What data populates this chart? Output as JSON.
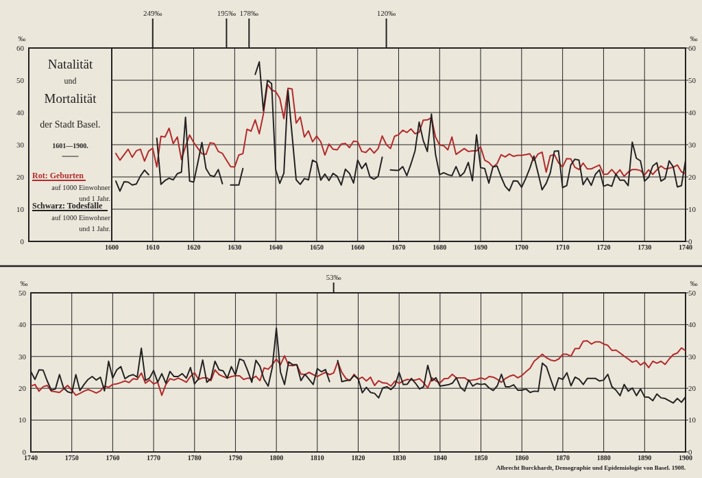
{
  "chart_data": [
    {
      "type": "line",
      "title": "Natalität\nund\nMortalität\nder Stadt Basel.",
      "subtitle": "1601—1900.",
      "ylabel": "‰",
      "y2label": "‰",
      "x": [
        1601,
        1602,
        1603,
        1604,
        1605,
        1606,
        1607,
        1608,
        1609,
        1610,
        1611,
        1612,
        1613,
        1614,
        1615,
        1616,
        1617,
        1618,
        1619,
        1620,
        1621,
        1622,
        1623,
        1624,
        1625,
        1626,
        1627,
        1628,
        1629,
        1630,
        1631,
        1632,
        1633,
        1634,
        1635,
        1636,
        1637,
        1638,
        1639,
        1640,
        1641,
        1642,
        1643,
        1644,
        1645,
        1646,
        1647,
        1648,
        1649,
        1650,
        1651,
        1652,
        1653,
        1654,
        1655,
        1656,
        1657,
        1658,
        1659,
        1660,
        1661,
        1662,
        1663,
        1664,
        1665,
        1666,
        1667,
        1668,
        1669,
        1670,
        1671,
        1672,
        1673,
        1674,
        1675,
        1676,
        1677,
        1678,
        1679,
        1680,
        1681,
        1682,
        1683,
        1684,
        1685,
        1686,
        1687,
        1688,
        1689,
        1690,
        1691,
        1692,
        1693,
        1694,
        1695,
        1696,
        1697,
        1698,
        1699,
        1700,
        1701,
        1702,
        1703,
        1704,
        1705,
        1706,
        1707,
        1708,
        1709,
        1710,
        1711,
        1712,
        1713,
        1714,
        1715,
        1716,
        1717,
        1718,
        1719,
        1720,
        1721,
        1722,
        1723,
        1724,
        1725,
        1726,
        1727,
        1728,
        1729,
        1730,
        1731,
        1732,
        1733,
        1734,
        1735,
        1736,
        1737,
        1738,
        1739,
        1740
      ],
      "series": [
        {
          "name": "Rot: Geburten",
          "color": "#b22a2a",
          "values": [
            27.3,
            25.2,
            26.9,
            28.6,
            26.1,
            28.1,
            28.6,
            24.9,
            28,
            28.9,
            23.1,
            32.6,
            32.4,
            35.1,
            30.3,
            32.4,
            25.4,
            29.5,
            33,
            30.7,
            28.9,
            27.2,
            27,
            30.6,
            30.4,
            27.9,
            27.3,
            25.2,
            23.2,
            23.1,
            26.8,
            27.2,
            34.8,
            34.2,
            37.7,
            33.4,
            39.5,
            48.7,
            47,
            46.5,
            44.4,
            38.1,
            47.5,
            47.3,
            36.7,
            38.6,
            32.4,
            34.3,
            30.9,
            32.7,
            30.9,
            26.8,
            30.2,
            28.6,
            28.4,
            30.2,
            30.4,
            29.1,
            31.1,
            30.9,
            27.9,
            27.6,
            28.9,
            27.4,
            28.8,
            32.7,
            30,
            28.8,
            32.6,
            33.1,
            34.5,
            33.8,
            34.9,
            33.4,
            33.8,
            37.6,
            37.7,
            38.4,
            32.4,
            29.9,
            29.7,
            28.4,
            32.4,
            27,
            27.9,
            28.8,
            27.9,
            28.1,
            28.1,
            29.3,
            25.2,
            24.5,
            23.1,
            24.1,
            26.9,
            26.2,
            27.1,
            26.4,
            26.7,
            26.7,
            26.9,
            27.2,
            25.1,
            27.1,
            27.7,
            21.5,
            26.6,
            26.9,
            24.4,
            23.1,
            25.7,
            25.6,
            23,
            22.3,
            24.3,
            22.5,
            22.5,
            23.1,
            23.7,
            20.8,
            20.9,
            22.3,
            20.8,
            22.2,
            20.2,
            21.5,
            22.3,
            22.3,
            22,
            20.6,
            22.2,
            20.8,
            22.2,
            23.4,
            22.5,
            22.7,
            23,
            23.7,
            21.6,
            21
          ]
        },
        {
          "name": "Schwarz: Todesfälle",
          "color": "#222222",
          "values": [
            18.7,
            15.6,
            18.5,
            18.4,
            17.5,
            17.8,
            20.3,
            22.1,
            20.7,
            null,
            32,
            17.7,
            18.9,
            19.6,
            19.1,
            21,
            21.5,
            38.5,
            18.7,
            18.4,
            24.4,
            30.7,
            22.6,
            20.5,
            20.1,
            22.3,
            17.9,
            null,
            17.5,
            17.5,
            17.5,
            22.6,
            null,
            null,
            51.8,
            55.7,
            40.6,
            50,
            49,
            22.3,
            18,
            21.2,
            46.9,
            33,
            19.1,
            17.7,
            19.5,
            19.1,
            25.2,
            24.5,
            19,
            20.9,
            18.9,
            21.1,
            20.2,
            17.5,
            22.4,
            21.1,
            18.1,
            25.2,
            22.6,
            24.3,
            20,
            19.3,
            20.2,
            26.1,
            null,
            22.2,
            22.1,
            22,
            23.2,
            20.4,
            24,
            28.1,
            37,
            31.3,
            27.9,
            39.5,
            27,
            20.7,
            21.3,
            20.7,
            20.4,
            23.2,
            20.2,
            21.4,
            24.5,
            18.8,
            33.1,
            22.9,
            22.6,
            18.1,
            23.1,
            23.4,
            20,
            17.1,
            15.7,
            18.8,
            18.7,
            16.8,
            19.5,
            22.7,
            26.5,
            21.3,
            16,
            18,
            21.3,
            28,
            28.1,
            16.7,
            17.3,
            23.7,
            25.5,
            25.2,
            17.6,
            19.7,
            17.4,
            20.8,
            22.2,
            17.1,
            17.6,
            17.1,
            20.9,
            19,
            19,
            17.3,
            30.8,
            25.8,
            25,
            18.7,
            19.9,
            23.4,
            24.4,
            18.7,
            19.5,
            25,
            23.1,
            16.9,
            17.3,
            25.2
          ]
        }
      ],
      "xlim": [
        1600,
        1740
      ],
      "xticks": [
        1600,
        1610,
        1620,
        1630,
        1640,
        1650,
        1660,
        1670,
        1680,
        1690,
        1700,
        1710,
        1720,
        1730,
        1740
      ],
      "ylim": [
        0,
        60
      ],
      "yticks": [
        0,
        10,
        20,
        30,
        40,
        50,
        60
      ],
      "y2lim": [
        0,
        60
      ],
      "y2ticks": [
        0,
        10,
        20,
        30,
        40,
        50,
        60
      ],
      "grid": true,
      "legend": "left",
      "annotations": [
        {
          "text": "249‰",
          "x": 1610
        },
        {
          "text": "195‰",
          "x": 1628
        },
        {
          "text": "178‰",
          "x": 1633.5
        },
        {
          "text": "120‰",
          "x": 1667
        },
        "auf 1000 Einwohner und 1 Jahr.",
        "auf 1000 Einwohner und 1 Jahr."
      ]
    },
    {
      "type": "line",
      "ylabel": "‰",
      "y2label": "‰",
      "x": [
        1740,
        1741,
        1742,
        1743,
        1744,
        1745,
        1746,
        1747,
        1748,
        1749,
        1750,
        1751,
        1752,
        1753,
        1754,
        1755,
        1756,
        1757,
        1758,
        1759,
        1760,
        1761,
        1762,
        1763,
        1764,
        1765,
        1766,
        1767,
        1768,
        1769,
        1770,
        1771,
        1772,
        1773,
        1774,
        1775,
        1776,
        1777,
        1778,
        1779,
        1780,
        1781,
        1782,
        1783,
        1784,
        1785,
        1786,
        1787,
        1788,
        1789,
        1790,
        1791,
        1792,
        1793,
        1794,
        1795,
        1796,
        1797,
        1798,
        1799,
        1800,
        1801,
        1802,
        1803,
        1804,
        1805,
        1806,
        1807,
        1808,
        1809,
        1810,
        1811,
        1812,
        1813,
        1814,
        1815,
        1816,
        1817,
        1818,
        1819,
        1820,
        1821,
        1822,
        1823,
        1824,
        1825,
        1826,
        1827,
        1828,
        1829,
        1830,
        1831,
        1832,
        1833,
        1834,
        1835,
        1836,
        1837,
        1838,
        1839,
        1840,
        1841,
        1842,
        1843,
        1844,
        1845,
        1846,
        1847,
        1848,
        1849,
        1850,
        1851,
        1852,
        1853,
        1854,
        1855,
        1856,
        1857,
        1858,
        1859,
        1860,
        1861,
        1862,
        1863,
        1864,
        1865,
        1866,
        1867,
        1868,
        1869,
        1870,
        1871,
        1872,
        1873,
        1874,
        1875,
        1876,
        1877,
        1878,
        1879,
        1880,
        1881,
        1882,
        1883,
        1884,
        1885,
        1886,
        1887,
        1888,
        1889,
        1890,
        1891,
        1892,
        1893,
        1894,
        1895,
        1896,
        1897,
        1898,
        1899,
        1900
      ],
      "series": [
        {
          "color": "#b22a2a",
          "values": [
            20.7,
            21.2,
            19.1,
            20.5,
            20.9,
            19.1,
            18.9,
            18.7,
            19.8,
            20.9,
            19.4,
            17.8,
            18.4,
            19.1,
            19.6,
            19.1,
            18.5,
            19.2,
            20.7,
            20.3,
            21.2,
            21.4,
            21.8,
            22.3,
            21.8,
            23,
            22.8,
            24.8,
            21.6,
            22.6,
            21.4,
            21.9,
            17.8,
            21.2,
            23,
            22.6,
            23.2,
            22.6,
            21.9,
            23.7,
            24.9,
            22.8,
            23.3,
            23.3,
            22.4,
            25.8,
            24.3,
            23.7,
            23.2,
            23.7,
            23.9,
            23.9,
            22.8,
            23.2,
            23,
            23.8,
            22.4,
            26.4,
            26,
            27.4,
            29.2,
            27.4,
            30.2,
            27.2,
            27.1,
            27.4,
            24.5,
            24.3,
            25,
            24.3,
            23.7,
            24.4,
            25,
            24.3,
            24.8,
            28.3,
            25,
            23.1,
            22.4,
            24.4,
            22.8,
            23.5,
            22.3,
            23.5,
            20.9,
            22.4,
            21.7,
            21.6,
            20.7,
            22.3,
            21.6,
            22.3,
            22.8,
            22.6,
            22.6,
            23,
            21.7,
            20.1,
            23.3,
            22.3,
            21.7,
            23,
            23.1,
            24.4,
            23.3,
            23.3,
            23.3,
            22.4,
            22.6,
            22.8,
            23.3,
            22.8,
            23.7,
            23.5,
            22.8,
            21.9,
            23.1,
            23.8,
            24.2,
            23.3,
            24,
            25.2,
            26.3,
            28.5,
            29.6,
            30.7,
            29.6,
            28.9,
            28.6,
            29.2,
            30.7,
            30.7,
            30.1,
            32.5,
            32.5,
            34.8,
            34.9,
            33.9,
            34.6,
            34.6,
            33.9,
            33.5,
            31.9,
            32,
            31.1,
            30.1,
            29.2,
            28.2,
            28.7,
            27.3,
            28.2,
            26.5,
            28.5,
            27.9,
            28.5,
            27.5,
            29.2,
            30.6,
            31.1,
            32.7,
            31.8
          ]
        },
        {
          "color": "#222222",
          "values": [
            25.3,
            22.8,
            25.8,
            25.7,
            22.3,
            19.4,
            19.8,
            24.3,
            20.1,
            18.9,
            18.5,
            24.3,
            19.3,
            21.2,
            22.8,
            23.7,
            22.6,
            23.5,
            19.2,
            28.5,
            23.2,
            25.8,
            26.8,
            23,
            23.9,
            24.3,
            23.5,
            32.6,
            22.5,
            23.2,
            25.6,
            21.9,
            24.6,
            21.6,
            25.3,
            23.7,
            23.7,
            24.6,
            23.2,
            26.5,
            21.4,
            23,
            28.9,
            21.9,
            23,
            28.5,
            25.8,
            25.5,
            23.2,
            26.8,
            24.2,
            29.2,
            28.7,
            25.5,
            21.9,
            28.8,
            26.9,
            22.8,
            20.7,
            26.5,
            38.9,
            25.1,
            21.2,
            28.3,
            27.4,
            27.4,
            22.4,
            24.4,
            22.8,
            21.2,
            26.2,
            25.2,
            25.9,
            22.1,
            null,
            28.7,
            22.1,
            22.4,
            22.6,
            24,
            23,
            18.6,
            20.3,
            18.7,
            18.4,
            17,
            20.1,
            20.5,
            19.6,
            20.9,
            25,
            21.2,
            21.3,
            23.1,
            21.6,
            19.8,
            20.5,
            27.2,
            22.3,
            23.3,
            20.7,
            20.9,
            21.1,
            21.6,
            23.3,
            20.3,
            19.1,
            22.6,
            20.7,
            21.5,
            21.2,
            21.4,
            20.1,
            19.3,
            20.8,
            24.4,
            20.5,
            20.5,
            21.1,
            19.4,
            19.4,
            19.8,
            18.7,
            19.1,
            19,
            27.9,
            26.8,
            23,
            19.4,
            23.3,
            22.8,
            24.9,
            20.8,
            23.5,
            22.8,
            21.2,
            23.1,
            23.1,
            23.1,
            22.3,
            22.6,
            24.4,
            20.5,
            19.4,
            17.7,
            21.2,
            19.1,
            20.1,
            17.7,
            19.8,
            17.3,
            17.2,
            16.1,
            18.2,
            17,
            16.8,
            16.1,
            15.4,
            16.8,
            15.6,
            17.3
          ]
        }
      ],
      "xlim": [
        1740,
        1900
      ],
      "xticks": [
        1740,
        1750,
        1760,
        1770,
        1780,
        1790,
        1800,
        1810,
        1820,
        1830,
        1840,
        1850,
        1860,
        1870,
        1880,
        1890,
        1900
      ],
      "ylim": [
        0,
        50
      ],
      "yticks": [
        0,
        10,
        20,
        30,
        40,
        50
      ],
      "y2lim": [
        0,
        50
      ],
      "y2ticks": [
        0,
        10,
        20,
        30,
        40,
        50
      ],
      "grid": true,
      "annotations": [
        {
          "text": "53‰",
          "x": 1814
        },
        "Albrecht Burckhardt, Demographie und Epidemiologie von Basel. 1908."
      ]
    }
  ]
}
